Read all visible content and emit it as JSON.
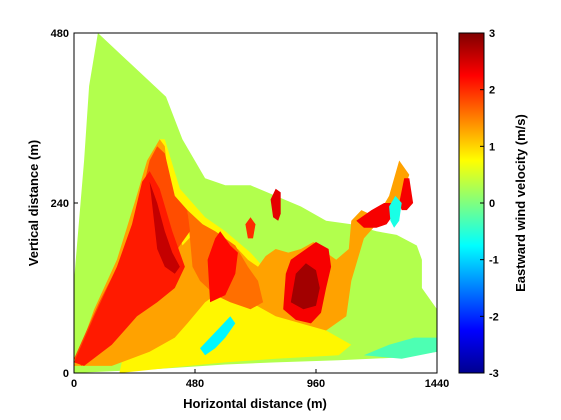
{
  "chart_data": {
    "type": "filled-contour",
    "xlabel": "Horizontal distance (m)",
    "ylabel": "Vertical distance (m)",
    "xlim": [
      0,
      1440
    ],
    "ylim": [
      0,
      480
    ],
    "xticks": [
      "0",
      "480",
      "960",
      "1440"
    ],
    "yticks": [
      "0",
      "240",
      "480"
    ],
    "colorbar": {
      "label": "Eastward wind velocity (m/s)",
      "range": [
        -3,
        3
      ],
      "ticks": [
        "-3",
        "-2",
        "-1",
        "0",
        "1",
        "2",
        "3"
      ],
      "colormap": "jet"
    },
    "regions": [
      {
        "value": 0.3,
        "polygon": [
          [
            60,
            405
          ],
          [
            95,
            480
          ],
          [
            365,
            390
          ],
          [
            430,
            330
          ],
          [
            520,
            275
          ],
          [
            600,
            265
          ],
          [
            700,
            265
          ],
          [
            800,
            250
          ],
          [
            900,
            235
          ],
          [
            1000,
            215
          ],
          [
            1100,
            210
          ],
          [
            1200,
            200
          ],
          [
            1280,
            195
          ],
          [
            1360,
            180
          ],
          [
            1380,
            160
          ],
          [
            1380,
            120
          ],
          [
            1440,
            90
          ],
          [
            1440,
            30
          ],
          [
            1300,
            22
          ],
          [
            1050,
            18
          ],
          [
            800,
            15
          ],
          [
            600,
            12
          ],
          [
            300,
            5
          ],
          [
            0,
            0
          ],
          [
            0,
            130
          ],
          [
            40,
            300
          ]
        ]
      },
      {
        "value": 0.8,
        "polygon": [
          [
            180,
            0
          ],
          [
            230,
            80
          ],
          [
            280,
            170
          ],
          [
            320,
            260
          ],
          [
            340,
            330
          ],
          [
            360,
            330
          ],
          [
            420,
            260
          ],
          [
            520,
            220
          ],
          [
            600,
            200
          ],
          [
            700,
            170
          ],
          [
            800,
            130
          ],
          [
            900,
            90
          ],
          [
            1000,
            60
          ],
          [
            1100,
            40
          ],
          [
            1050,
            25
          ],
          [
            800,
            20
          ],
          [
            600,
            15
          ],
          [
            400,
            8
          ]
        ]
      },
      {
        "value": 1.3,
        "polygon": [
          [
            0,
            10
          ],
          [
            80,
            90
          ],
          [
            170,
            160
          ],
          [
            240,
            240
          ],
          [
            290,
            300
          ],
          [
            340,
            330
          ],
          [
            360,
            320
          ],
          [
            380,
            250
          ],
          [
            430,
            180
          ],
          [
            470,
            195
          ],
          [
            520,
            185
          ],
          [
            560,
            150
          ],
          [
            600,
            120
          ],
          [
            520,
            100
          ],
          [
            450,
            70
          ],
          [
            400,
            50
          ],
          [
            300,
            30
          ],
          [
            150,
            10
          ]
        ]
      },
      {
        "value": 1.3,
        "polygon": [
          [
            600,
            170
          ],
          [
            650,
            130
          ],
          [
            700,
            100
          ],
          [
            800,
            80
          ],
          [
            900,
            70
          ],
          [
            1000,
            60
          ],
          [
            1080,
            80
          ],
          [
            1100,
            130
          ],
          [
            1150,
            190
          ],
          [
            1200,
            210
          ],
          [
            1280,
            230
          ],
          [
            1330,
            280
          ],
          [
            1290,
            300
          ],
          [
            1250,
            250
          ],
          [
            1200,
            220
          ],
          [
            1140,
            230
          ],
          [
            1100,
            215
          ],
          [
            1090,
            175
          ],
          [
            1040,
            160
          ],
          [
            1000,
            170
          ],
          [
            950,
            185
          ],
          [
            900,
            175
          ],
          [
            850,
            170
          ],
          [
            800,
            175
          ],
          [
            760,
            165
          ],
          [
            730,
            150
          ],
          [
            690,
            160
          ],
          [
            650,
            175
          ]
        ]
      },
      {
        "value": 1.6,
        "polygon": [
          [
            450,
            230
          ],
          [
            510,
            210
          ],
          [
            560,
            200
          ],
          [
            600,
            190
          ],
          [
            640,
            180
          ],
          [
            690,
            150
          ],
          [
            730,
            130
          ],
          [
            750,
            100
          ],
          [
            700,
            90
          ],
          [
            620,
            100
          ],
          [
            560,
            110
          ],
          [
            500,
            130
          ],
          [
            470,
            150
          ]
        ]
      },
      {
        "value": 1.8,
        "polygon": [
          [
            0,
            20
          ],
          [
            100,
            100
          ],
          [
            200,
            170
          ],
          [
            260,
            240
          ],
          [
            300,
            300
          ],
          [
            330,
            320
          ],
          [
            360,
            310
          ],
          [
            400,
            250
          ],
          [
            450,
            230
          ],
          [
            460,
            200
          ],
          [
            400,
            170
          ],
          [
            300,
            120
          ],
          [
            200,
            70
          ],
          [
            100,
            30
          ],
          [
            30,
            10
          ]
        ]
      },
      {
        "value": 2.1,
        "polygon": [
          [
            0,
            15
          ],
          [
            80,
            80
          ],
          [
            170,
            150
          ],
          [
            230,
            210
          ],
          [
            270,
            270
          ],
          [
            300,
            285
          ],
          [
            340,
            260
          ],
          [
            390,
            200
          ],
          [
            440,
            150
          ],
          [
            400,
            120
          ],
          [
            330,
            100
          ],
          [
            250,
            80
          ],
          [
            150,
            40
          ],
          [
            40,
            10
          ]
        ]
      },
      {
        "value": 2.6,
        "polygon": [
          [
            300,
            270
          ],
          [
            330,
            240
          ],
          [
            360,
            200
          ],
          [
            390,
            170
          ],
          [
            420,
            150
          ],
          [
            400,
            140
          ],
          [
            360,
            150
          ],
          [
            330,
            175
          ]
        ]
      },
      {
        "value": 2.2,
        "polygon": [
          [
            540,
            100
          ],
          [
            600,
            110
          ],
          [
            640,
            140
          ],
          [
            650,
            170
          ],
          [
            620,
            180
          ],
          [
            580,
            200
          ],
          [
            560,
            190
          ],
          [
            530,
            160
          ]
        ]
      },
      {
        "value": 2.3,
        "polygon": [
          [
            830,
            90
          ],
          [
            880,
            75
          ],
          [
            940,
            70
          ],
          [
            980,
            85
          ],
          [
            1000,
            120
          ],
          [
            1020,
            150
          ],
          [
            1010,
            175
          ],
          [
            960,
            185
          ],
          [
            900,
            170
          ],
          [
            860,
            160
          ],
          [
            840,
            140
          ]
        ]
      },
      {
        "value": 2.8,
        "polygon": [
          [
            860,
            100
          ],
          [
            910,
            90
          ],
          [
            960,
            95
          ],
          [
            975,
            120
          ],
          [
            960,
            145
          ],
          [
            920,
            155
          ],
          [
            880,
            140
          ]
        ]
      },
      {
        "value": 2.3,
        "polygon": [
          [
            1120,
            215
          ],
          [
            1180,
            230
          ],
          [
            1230,
            240
          ],
          [
            1270,
            240
          ],
          [
            1280,
            230
          ],
          [
            1240,
            210
          ],
          [
            1200,
            205
          ],
          [
            1150,
            205
          ]
        ]
      },
      {
        "value": 2.3,
        "polygon": [
          [
            1290,
            240
          ],
          [
            1310,
            275
          ],
          [
            1330,
            275
          ],
          [
            1345,
            240
          ],
          [
            1320,
            230
          ],
          [
            1300,
            230
          ]
        ]
      },
      {
        "value": 2.4,
        "polygon": [
          [
            780,
            245
          ],
          [
            800,
            260
          ],
          [
            820,
            255
          ],
          [
            820,
            225
          ],
          [
            810,
            215
          ],
          [
            790,
            220
          ]
        ]
      },
      {
        "value": 2.0,
        "polygon": [
          [
            680,
            210
          ],
          [
            700,
            220
          ],
          [
            720,
            210
          ],
          [
            710,
            190
          ],
          [
            690,
            190
          ]
        ]
      },
      {
        "value": -0.8,
        "polygon": [
          [
            500,
            35
          ],
          [
            540,
            50
          ],
          [
            580,
            65
          ],
          [
            620,
            80
          ],
          [
            640,
            70
          ],
          [
            600,
            50
          ],
          [
            560,
            35
          ],
          [
            520,
            25
          ]
        ]
      },
      {
        "value": -0.6,
        "polygon": [
          [
            1250,
            235
          ],
          [
            1275,
            250
          ],
          [
            1300,
            240
          ],
          [
            1290,
            215
          ],
          [
            1270,
            205
          ],
          [
            1255,
            215
          ]
        ]
      },
      {
        "value": -0.3,
        "polygon": [
          [
            1150,
            25
          ],
          [
            1250,
            40
          ],
          [
            1350,
            50
          ],
          [
            1440,
            50
          ],
          [
            1440,
            30
          ],
          [
            1300,
            20
          ]
        ]
      }
    ]
  }
}
